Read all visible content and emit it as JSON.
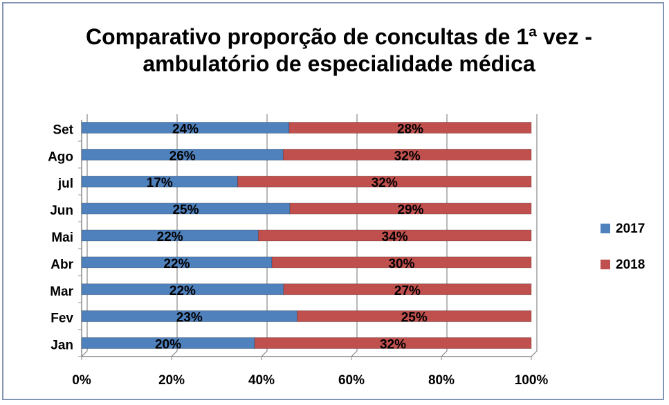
{
  "chart_data": {
    "type": "bar",
    "orientation": "horizontal",
    "stacking": "percent",
    "title": "Comparativo proporção de concultas de 1ª vez - ambulatório de especialidade médica",
    "categories": [
      "Jan",
      "Fev",
      "Mar",
      "Abr",
      "Mai",
      "Jun",
      "jul",
      "Ago",
      "Set"
    ],
    "series": [
      {
        "name": "2017",
        "color": "#4f81bd",
        "values": [
          20,
          23,
          22,
          22,
          22,
          25,
          17,
          26,
          24
        ],
        "value_labels": [
          "20%",
          "23%",
          "22%",
          "22%",
          "22%",
          "25%",
          "17%",
          "26%",
          "24%"
        ]
      },
      {
        "name": "2018",
        "color": "#c0504d",
        "values": [
          32,
          25,
          27,
          30,
          34,
          29,
          32,
          32,
          28
        ],
        "value_labels": [
          "32%",
          "25%",
          "27%",
          "30%",
          "34%",
          "29%",
          "32%",
          "32%",
          "28%"
        ]
      }
    ],
    "xlim": [
      0,
      100
    ],
    "xticks": [
      {
        "value": 0,
        "label": "0%"
      },
      {
        "value": 20,
        "label": "20%"
      },
      {
        "value": 40,
        "label": "40%"
      },
      {
        "value": 60,
        "label": "60%"
      },
      {
        "value": 80,
        "label": "80%"
      },
      {
        "value": 100,
        "label": "100%"
      }
    ],
    "grid": true,
    "legend": "right"
  }
}
